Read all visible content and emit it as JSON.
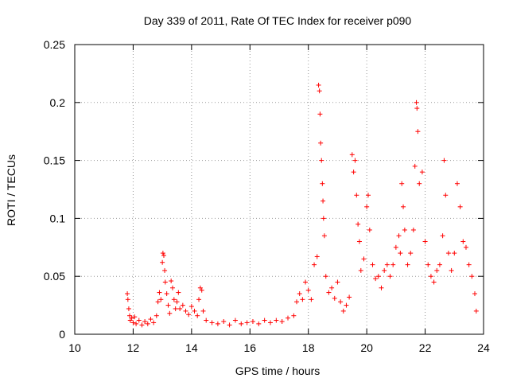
{
  "chart_data": {
    "type": "scatter",
    "title": "Day 339 of 2011, Rate Of TEC Index for receiver p090",
    "xlabel": "GPS time / hours",
    "ylabel": "ROTI / TECUs",
    "xlim": [
      10,
      24
    ],
    "ylim": [
      0,
      0.25
    ],
    "x_ticks": [
      10,
      12,
      14,
      16,
      18,
      20,
      22,
      24
    ],
    "x_tick_labels": [
      "10",
      "12",
      "14",
      "16",
      "18",
      "20",
      "22",
      "24"
    ],
    "y_ticks": [
      0,
      0.05,
      0.1,
      0.15,
      0.2,
      0.25
    ],
    "y_tick_labels": [
      "0",
      "0.05",
      "0.1",
      "0.15",
      "0.2",
      "0.25"
    ],
    "grid": true,
    "marker": "+",
    "color": "#ff0000",
    "series": [
      {
        "name": "ROTI",
        "points": [
          [
            11.8,
            0.035
          ],
          [
            11.82,
            0.03
          ],
          [
            11.85,
            0.022
          ],
          [
            11.88,
            0.016
          ],
          [
            11.9,
            0.012
          ],
          [
            11.95,
            0.014
          ],
          [
            12.0,
            0.01
          ],
          [
            12.05,
            0.015
          ],
          [
            12.1,
            0.009
          ],
          [
            12.2,
            0.012
          ],
          [
            12.3,
            0.008
          ],
          [
            12.4,
            0.011
          ],
          [
            12.5,
            0.009
          ],
          [
            12.6,
            0.013
          ],
          [
            12.7,
            0.01
          ],
          [
            12.8,
            0.016
          ],
          [
            12.85,
            0.028
          ],
          [
            12.9,
            0.036
          ],
          [
            12.95,
            0.03
          ],
          [
            13.0,
            0.062
          ],
          [
            13.02,
            0.07
          ],
          [
            13.05,
            0.068
          ],
          [
            13.08,
            0.055
          ],
          [
            13.1,
            0.045
          ],
          [
            13.15,
            0.035
          ],
          [
            13.2,
            0.025
          ],
          [
            13.25,
            0.018
          ],
          [
            13.3,
            0.046
          ],
          [
            13.35,
            0.04
          ],
          [
            13.4,
            0.03
          ],
          [
            13.45,
            0.022
          ],
          [
            13.5,
            0.028
          ],
          [
            13.55,
            0.036
          ],
          [
            13.6,
            0.022
          ],
          [
            13.7,
            0.025
          ],
          [
            13.8,
            0.02
          ],
          [
            13.9,
            0.017
          ],
          [
            14.0,
            0.024
          ],
          [
            14.1,
            0.02
          ],
          [
            14.2,
            0.016
          ],
          [
            14.25,
            0.03
          ],
          [
            14.3,
            0.04
          ],
          [
            14.35,
            0.038
          ],
          [
            14.4,
            0.02
          ],
          [
            14.5,
            0.012
          ],
          [
            14.7,
            0.01
          ],
          [
            14.9,
            0.009
          ],
          [
            15.1,
            0.011
          ],
          [
            15.3,
            0.008
          ],
          [
            15.5,
            0.012
          ],
          [
            15.7,
            0.009
          ],
          [
            15.9,
            0.01
          ],
          [
            16.1,
            0.011
          ],
          [
            16.3,
            0.009
          ],
          [
            16.5,
            0.012
          ],
          [
            16.7,
            0.01
          ],
          [
            16.9,
            0.012
          ],
          [
            17.1,
            0.011
          ],
          [
            17.3,
            0.014
          ],
          [
            17.5,
            0.016
          ],
          [
            17.6,
            0.028
          ],
          [
            17.7,
            0.035
          ],
          [
            17.8,
            0.03
          ],
          [
            17.9,
            0.045
          ],
          [
            18.0,
            0.038
          ],
          [
            18.1,
            0.03
          ],
          [
            18.2,
            0.06
          ],
          [
            18.3,
            0.067
          ],
          [
            18.35,
            0.215
          ],
          [
            18.38,
            0.21
          ],
          [
            18.4,
            0.19
          ],
          [
            18.42,
            0.165
          ],
          [
            18.45,
            0.15
          ],
          [
            18.48,
            0.13
          ],
          [
            18.5,
            0.115
          ],
          [
            18.52,
            0.1
          ],
          [
            18.55,
            0.085
          ],
          [
            18.6,
            0.05
          ],
          [
            18.7,
            0.036
          ],
          [
            18.8,
            0.04
          ],
          [
            18.9,
            0.031
          ],
          [
            19.0,
            0.045
          ],
          [
            19.1,
            0.028
          ],
          [
            19.2,
            0.02
          ],
          [
            19.3,
            0.025
          ],
          [
            19.4,
            0.032
          ],
          [
            19.5,
            0.155
          ],
          [
            19.55,
            0.14
          ],
          [
            19.6,
            0.15
          ],
          [
            19.65,
            0.12
          ],
          [
            19.7,
            0.095
          ],
          [
            19.75,
            0.08
          ],
          [
            19.8,
            0.055
          ],
          [
            19.9,
            0.065
          ],
          [
            20.0,
            0.11
          ],
          [
            20.05,
            0.12
          ],
          [
            20.1,
            0.09
          ],
          [
            20.2,
            0.06
          ],
          [
            20.3,
            0.048
          ],
          [
            20.4,
            0.05
          ],
          [
            20.5,
            0.04
          ],
          [
            20.6,
            0.055
          ],
          [
            20.7,
            0.06
          ],
          [
            20.8,
            0.05
          ],
          [
            20.9,
            0.06
          ],
          [
            21.0,
            0.075
          ],
          [
            21.1,
            0.085
          ],
          [
            21.15,
            0.07
          ],
          [
            21.2,
            0.13
          ],
          [
            21.25,
            0.11
          ],
          [
            21.3,
            0.09
          ],
          [
            21.4,
            0.06
          ],
          [
            21.5,
            0.07
          ],
          [
            21.6,
            0.09
          ],
          [
            21.65,
            0.145
          ],
          [
            21.7,
            0.2
          ],
          [
            21.72,
            0.195
          ],
          [
            21.75,
            0.175
          ],
          [
            21.8,
            0.13
          ],
          [
            21.9,
            0.14
          ],
          [
            22.0,
            0.08
          ],
          [
            22.1,
            0.06
          ],
          [
            22.2,
            0.05
          ],
          [
            22.3,
            0.045
          ],
          [
            22.4,
            0.055
          ],
          [
            22.5,
            0.06
          ],
          [
            22.6,
            0.085
          ],
          [
            22.65,
            0.15
          ],
          [
            22.7,
            0.12
          ],
          [
            22.8,
            0.07
          ],
          [
            22.9,
            0.055
          ],
          [
            23.0,
            0.07
          ],
          [
            23.1,
            0.13
          ],
          [
            23.2,
            0.11
          ],
          [
            23.3,
            0.08
          ],
          [
            23.4,
            0.075
          ],
          [
            23.5,
            0.06
          ],
          [
            23.6,
            0.05
          ],
          [
            23.7,
            0.035
          ],
          [
            23.75,
            0.02
          ]
        ]
      }
    ]
  }
}
